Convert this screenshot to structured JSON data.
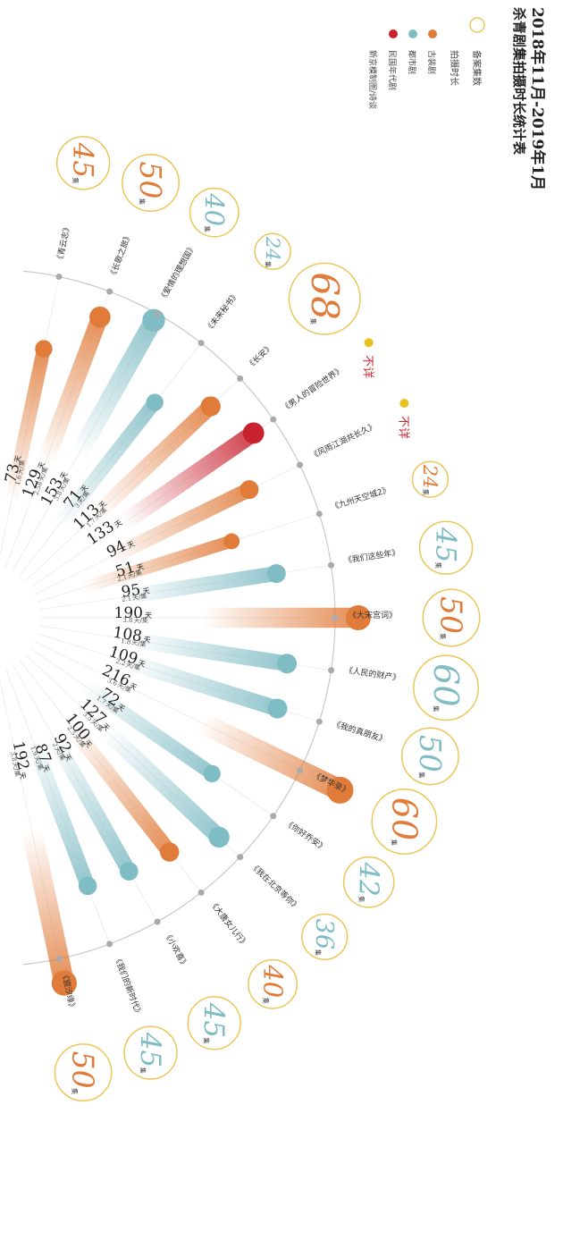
{
  "title_line1": "2018年11月-2019年1月",
  "title_line2": "杀青剧集拍摄时长统计表",
  "legend": {
    "episodes_label": "备案集数",
    "shoot_label": "拍摄时长",
    "items": [
      {
        "label": "古装剧",
        "color": "#e07b39"
      },
      {
        "label": "都市剧",
        "color": "#7fbcc4"
      },
      {
        "label": "民国年代剧",
        "color": "#c8222f"
      },
      {
        "label": "新京模制图/诗谈",
        "color": "#c8222f"
      }
    ]
  },
  "colors": {
    "古装剧": "#e07b39",
    "都市剧": "#7fbcc4",
    "民国年代剧": "#c8222f",
    "ring": "#ebc75a",
    "unknown_dot": "#e8c020",
    "unknown_text": "#c8222f"
  },
  "unit_days": "天",
  "unit_per_episode": "天/集",
  "unit_episodes": "集",
  "unknown_label": "不详",
  "chart_data": {
    "type": "radial-bar",
    "title": "2018年11月-2019年1月 杀青剧集拍摄时长统计表",
    "series_key": [
      "古装剧",
      "都市剧",
      "民国年代剧"
    ],
    "items": [
      {
        "name": "《青云志》",
        "genre": "古装剧",
        "days": 73,
        "per_ep": "1.6",
        "episodes": "45"
      },
      {
        "name": "《长歌之旅》",
        "genre": "古装剧",
        "days": 129,
        "per_ep": "2.58",
        "episodes": "50"
      },
      {
        "name": "《爱情的理想国》",
        "genre": "都市剧",
        "days": 153,
        "per_ep": "3.8",
        "episodes": "40"
      },
      {
        "name": "《未来秘书》",
        "genre": "都市剧",
        "days": 71,
        "per_ep": "3",
        "episodes": "24"
      },
      {
        "name": "《长安》",
        "genre": "古装剧",
        "days": 113,
        "per_ep": "1.7",
        "episodes": "68"
      },
      {
        "name": "《男人的冒险世界》",
        "genre": "民国年代剧",
        "days": 133,
        "per_ep": "",
        "episodes": "不详"
      },
      {
        "name": "《风雨江湖共长久》",
        "genre": "古装剧",
        "days": 94,
        "per_ep": "",
        "episodes": "不详"
      },
      {
        "name": "《九州天空城2》",
        "genre": "古装剧",
        "days": 51,
        "per_ep": "2.1",
        "episodes": "24"
      },
      {
        "name": "《我们这些年》",
        "genre": "都市剧",
        "days": 95,
        "per_ep": "2.1",
        "episodes": "45"
      },
      {
        "name": "《大宋宫词》",
        "genre": "古装剧",
        "days": 190,
        "per_ep": "3.8",
        "episodes": "50"
      },
      {
        "name": "《人民的财产》",
        "genre": "都市剧",
        "days": 108,
        "per_ep": "1.8",
        "episodes": "60"
      },
      {
        "name": "《我的真朋友》",
        "genre": "都市剧",
        "days": 109,
        "per_ep": "2.2",
        "episodes": "50"
      },
      {
        "name": "《梦华录》",
        "genre": "古装剧",
        "days": 216,
        "per_ep": "3.6",
        "episodes": "60"
      },
      {
        "name": "《你好乔安》",
        "genre": "都市剧",
        "days": 72,
        "per_ep": "1.7",
        "episodes": "42"
      },
      {
        "name": "《我在北京等你》",
        "genre": "都市剧",
        "days": 127,
        "per_ep": "3.5",
        "episodes": "36"
      },
      {
        "name": "《大唐女儿行》",
        "genre": "古装剧",
        "days": 100,
        "per_ep": "2.5",
        "episodes": "40"
      },
      {
        "name": "《小欢喜》",
        "genre": "都市剧",
        "days": 92,
        "per_ep": "2",
        "episodes": "45"
      },
      {
        "name": "《我们的新时代》",
        "genre": "都市剧",
        "days": 87,
        "per_ep": "1.9",
        "episodes": "45"
      },
      {
        "name": "《宸汐缘》",
        "genre": "古装剧",
        "days": 192,
        "per_ep": "3.8",
        "episodes": "50"
      }
    ]
  }
}
